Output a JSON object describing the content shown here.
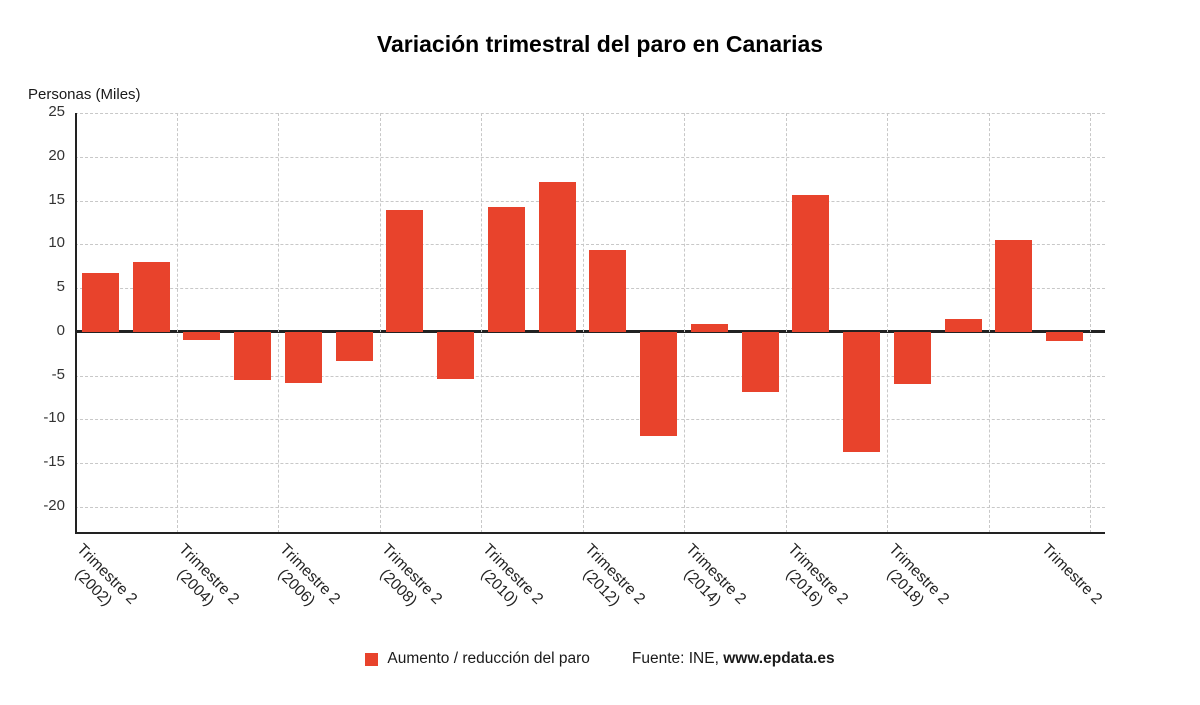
{
  "page": {
    "title": "Variación trimestral del paro en Canarias",
    "y_axis_title": "Personas (Miles)"
  },
  "legend": {
    "series_label": "Aumento / reducción del paro",
    "source_prefix": "Fuente: INE, ",
    "source_site": "www.epdata.es"
  },
  "chart_data": {
    "type": "bar",
    "title": "Variación trimestral del paro en Canarias",
    "ylabel": "Personas (Miles)",
    "ylim": [
      -23,
      25
    ],
    "yticks": [
      25,
      20,
      15,
      10,
      5,
      0,
      -5,
      -10,
      -15,
      -20
    ],
    "grid": "dashed",
    "legend_position": "bottom",
    "bar_color": "#e8432c",
    "series_name": "Aumento / reducción del paro",
    "x_labels": [
      {
        "line1": "Trimestre 2",
        "line2": "(2002)"
      },
      null,
      {
        "line1": "Trimestre 2",
        "line2": "(2004)"
      },
      null,
      {
        "line1": "Trimestre 2",
        "line2": "(2006)"
      },
      null,
      {
        "line1": "Trimestre 2",
        "line2": "(2008)"
      },
      null,
      {
        "line1": "Trimestre 2",
        "line2": "(2010)"
      },
      null,
      {
        "line1": "Trimestre 2",
        "line2": "(2012)"
      },
      null,
      {
        "line1": "Trimestre 2",
        "line2": "(2014)"
      },
      null,
      {
        "line1": "Trimestre 2",
        "line2": "(2016)"
      },
      null,
      {
        "line1": "Trimestre 2",
        "line2": "(2018)"
      },
      null,
      null,
      {
        "line1": "Trimestre 2",
        "line2": ""
      }
    ],
    "values": [
      6.7,
      8.0,
      -0.9,
      -5.5,
      -5.9,
      -3.3,
      13.9,
      -5.4,
      14.3,
      17.1,
      9.4,
      -11.9,
      0.9,
      -6.9,
      15.6,
      -13.7,
      -6.0,
      1.5,
      10.5,
      -1.0
    ]
  }
}
